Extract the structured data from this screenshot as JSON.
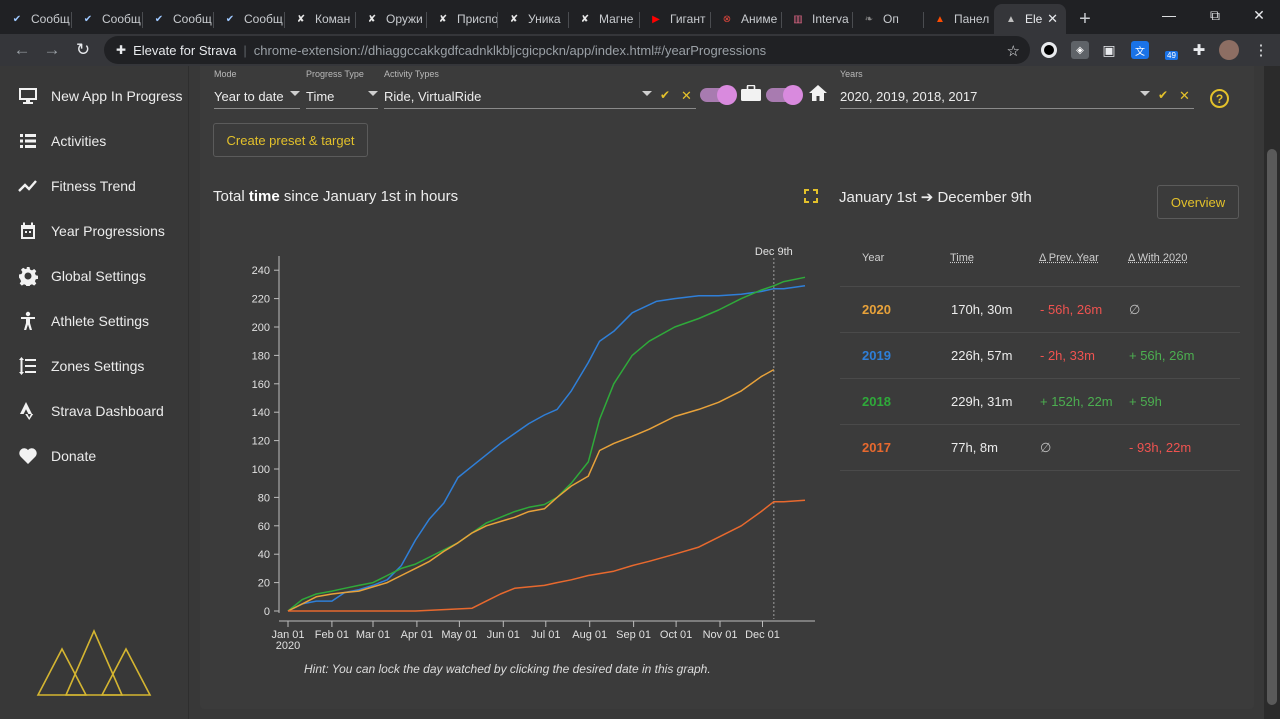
{
  "browser": {
    "tabs": [
      {
        "label": "Сообщ",
        "icon": "steam-icon",
        "color": "#9ec8ff"
      },
      {
        "label": "Сообщ",
        "icon": "steam-icon",
        "color": "#9ec8ff"
      },
      {
        "label": "Сообщ",
        "icon": "steam-icon",
        "color": "#9ec8ff"
      },
      {
        "label": "Сообщ",
        "icon": "steam-icon",
        "color": "#9ec8ff"
      },
      {
        "label": "Коман",
        "icon": "wrench-icon",
        "color": "#e8e8e8"
      },
      {
        "label": "Оружи",
        "icon": "wrench-icon",
        "color": "#e8e8e8"
      },
      {
        "label": "Приспо",
        "icon": "wrench-icon",
        "color": "#e8e8e8"
      },
      {
        "label": "Уника",
        "icon": "wrench-icon",
        "color": "#e8e8e8"
      },
      {
        "label": "Магне",
        "icon": "wrench-icon",
        "color": "#e8e8e8"
      },
      {
        "label": "Гигант",
        "icon": "youtube-icon",
        "color": "#ff0000"
      },
      {
        "label": "Аниме",
        "icon": "anime-icon",
        "color": "#e0473d"
      },
      {
        "label": "Interva",
        "icon": "intervals-icon",
        "color": "#e86a8a"
      },
      {
        "label": "Оп",
        "icon": "leaf-icon",
        "color": "#888888"
      },
      {
        "label": "Панел",
        "icon": "strava-icon",
        "color": "#fc4c02"
      },
      {
        "label": "Ele",
        "icon": "elevate-icon",
        "color": "#bfbfbf"
      }
    ],
    "new_tab": "+",
    "window_controls": {
      "minimize": "—",
      "maximize": "⧉",
      "close": "✕"
    },
    "nav": {
      "back": "←",
      "forward": "→",
      "reload": "↻"
    },
    "url_site": "Elevate for Strava",
    "url_path": "chrome-extension://dhiaggccakkgdfcadnklkbljcgicpckn/app/index.html#/yearProgressions",
    "extensions_badge": "49"
  },
  "sidebar": {
    "items": [
      {
        "label": "New App In Progress",
        "icon": "monitor-icon"
      },
      {
        "label": "Activities",
        "icon": "list-icon"
      },
      {
        "label": "Fitness Trend",
        "icon": "trend-icon"
      },
      {
        "label": "Year Progressions",
        "icon": "calendar-icon"
      },
      {
        "label": "Global Settings",
        "icon": "gear-icon"
      },
      {
        "label": "Athlete Settings",
        "icon": "athlete-icon"
      },
      {
        "label": "Zones Settings",
        "icon": "zones-icon"
      },
      {
        "label": "Strava Dashboard",
        "icon": "strava-icon"
      },
      {
        "label": "Donate",
        "icon": "heart-icon"
      }
    ]
  },
  "filters": {
    "mode": {
      "label": "Mode",
      "value": "Year to date"
    },
    "progress_type": {
      "label": "Progress Type",
      "value": "Time"
    },
    "activity_types": {
      "label": "Activity Types",
      "value": "Ride, VirtualRide"
    },
    "years": {
      "label": "Years",
      "value": "2020, 2019, 2018, 2017"
    },
    "check": "✔",
    "clear": "✕",
    "help": "?"
  },
  "buttons": {
    "create_preset": "Create preset & target",
    "overview": "Overview"
  },
  "chart_header": {
    "title_prefix": "Total",
    "title_bold": "time",
    "title_suffix": "since January 1st in hours"
  },
  "period": {
    "text": "January 1st ➔ December 9th"
  },
  "hint": "Hint: You can lock the day watched by clicking the desired date in this graph.",
  "table": {
    "headers": {
      "year": "Year",
      "time": "Time",
      "prev": "Δ Prev. Year",
      "with": "Δ With 2020"
    },
    "rows": [
      {
        "year": "2020",
        "color": "#e8a23a",
        "time": "170h, 30m",
        "prev": "- 56h, 26m",
        "prev_color": "#ef5350",
        "with": "∅",
        "with_color": "#bdbdbd"
      },
      {
        "year": "2019",
        "color": "#2f7fd8",
        "time": "226h, 57m",
        "prev": "- 2h, 33m",
        "prev_color": "#ef5350",
        "with": "+ 56h, 26m",
        "with_color": "#4caf50"
      },
      {
        "year": "2018",
        "color": "#2faa3a",
        "time": "229h, 31m",
        "prev": "+ 152h, 22m",
        "prev_color": "#4caf50",
        "with": "+ 59h",
        "with_color": "#4caf50"
      },
      {
        "year": "2017",
        "color": "#e8692e",
        "time": "77h, 8m",
        "prev": "∅",
        "prev_color": "#bdbdbd",
        "with": "- 93h, 22m",
        "with_color": "#ef5350"
      }
    ]
  },
  "chart_data": {
    "type": "line",
    "ylabel": "",
    "xlabel": "",
    "ylim": [
      0,
      250
    ],
    "y_ticks": [
      0,
      20,
      40,
      60,
      80,
      100,
      120,
      140,
      160,
      180,
      200,
      220,
      240
    ],
    "x_tick_labels": [
      "Jan 01",
      "Feb 01",
      "Mar 01",
      "Apr 01",
      "May 01",
      "Jun 01",
      "Jul 01",
      "Aug 01",
      "Sep 01",
      "Oct 01",
      "Nov 01",
      "Dec 01"
    ],
    "x_year_label": "2020",
    "marker_label": "Dec 9th",
    "marker_day": 343,
    "day_range": [
      0,
      365
    ],
    "series": [
      {
        "name": "2019",
        "color": "#2f7fd8",
        "points": [
          [
            0,
            0
          ],
          [
            10,
            5
          ],
          [
            20,
            7
          ],
          [
            31,
            7
          ],
          [
            40,
            13
          ],
          [
            50,
            15
          ],
          [
            60,
            18
          ],
          [
            70,
            22
          ],
          [
            80,
            32
          ],
          [
            90,
            50
          ],
          [
            100,
            65
          ],
          [
            110,
            76
          ],
          [
            120,
            94
          ],
          [
            130,
            102
          ],
          [
            140,
            110
          ],
          [
            150,
            118
          ],
          [
            160,
            125
          ],
          [
            170,
            132
          ],
          [
            181,
            138
          ],
          [
            190,
            142
          ],
          [
            200,
            155
          ],
          [
            212,
            175
          ],
          [
            220,
            190
          ],
          [
            230,
            197
          ],
          [
            243,
            210
          ],
          [
            260,
            218
          ],
          [
            273,
            220
          ],
          [
            290,
            222
          ],
          [
            304,
            222
          ],
          [
            320,
            223
          ],
          [
            334,
            225
          ],
          [
            343,
            227
          ],
          [
            350,
            227
          ],
          [
            365,
            229
          ]
        ]
      },
      {
        "name": "2018",
        "color": "#2faa3a",
        "points": [
          [
            0,
            0
          ],
          [
            10,
            8
          ],
          [
            20,
            12
          ],
          [
            31,
            14
          ],
          [
            40,
            16
          ],
          [
            50,
            18
          ],
          [
            60,
            20
          ],
          [
            70,
            25
          ],
          [
            80,
            30
          ],
          [
            90,
            33
          ],
          [
            100,
            38
          ],
          [
            110,
            43
          ],
          [
            120,
            48
          ],
          [
            130,
            55
          ],
          [
            140,
            62
          ],
          [
            150,
            66
          ],
          [
            160,
            70
          ],
          [
            170,
            73
          ],
          [
            181,
            75
          ],
          [
            190,
            80
          ],
          [
            200,
            90
          ],
          [
            212,
            105
          ],
          [
            220,
            135
          ],
          [
            230,
            160
          ],
          [
            243,
            180
          ],
          [
            255,
            190
          ],
          [
            273,
            200
          ],
          [
            290,
            206
          ],
          [
            304,
            212
          ],
          [
            320,
            220
          ],
          [
            334,
            226
          ],
          [
            343,
            229
          ],
          [
            350,
            232
          ],
          [
            365,
            235
          ]
        ]
      },
      {
        "name": "2020",
        "color": "#e8a23a",
        "points": [
          [
            0,
            0
          ],
          [
            10,
            5
          ],
          [
            20,
            10
          ],
          [
            31,
            12
          ],
          [
            40,
            13
          ],
          [
            50,
            14
          ],
          [
            60,
            17
          ],
          [
            70,
            20
          ],
          [
            80,
            25
          ],
          [
            90,
            30
          ],
          [
            100,
            35
          ],
          [
            110,
            42
          ],
          [
            120,
            48
          ],
          [
            130,
            55
          ],
          [
            140,
            60
          ],
          [
            150,
            63
          ],
          [
            160,
            66
          ],
          [
            170,
            70
          ],
          [
            181,
            72
          ],
          [
            190,
            80
          ],
          [
            200,
            88
          ],
          [
            212,
            95
          ],
          [
            220,
            113
          ],
          [
            230,
            118
          ],
          [
            243,
            123
          ],
          [
            255,
            128
          ],
          [
            273,
            137
          ],
          [
            290,
            142
          ],
          [
            304,
            147
          ],
          [
            320,
            155
          ],
          [
            334,
            165
          ],
          [
            343,
            170
          ]
        ]
      },
      {
        "name": "2017",
        "color": "#e8692e",
        "points": [
          [
            0,
            0
          ],
          [
            31,
            0
          ],
          [
            60,
            0
          ],
          [
            90,
            0
          ],
          [
            110,
            1
          ],
          [
            130,
            2
          ],
          [
            140,
            7
          ],
          [
            150,
            12
          ],
          [
            160,
            16
          ],
          [
            181,
            18
          ],
          [
            190,
            20
          ],
          [
            200,
            22
          ],
          [
            212,
            25
          ],
          [
            230,
            28
          ],
          [
            243,
            32
          ],
          [
            255,
            35
          ],
          [
            273,
            40
          ],
          [
            290,
            45
          ],
          [
            304,
            52
          ],
          [
            320,
            60
          ],
          [
            334,
            70
          ],
          [
            343,
            77
          ],
          [
            350,
            77
          ],
          [
            365,
            78
          ]
        ]
      }
    ]
  }
}
